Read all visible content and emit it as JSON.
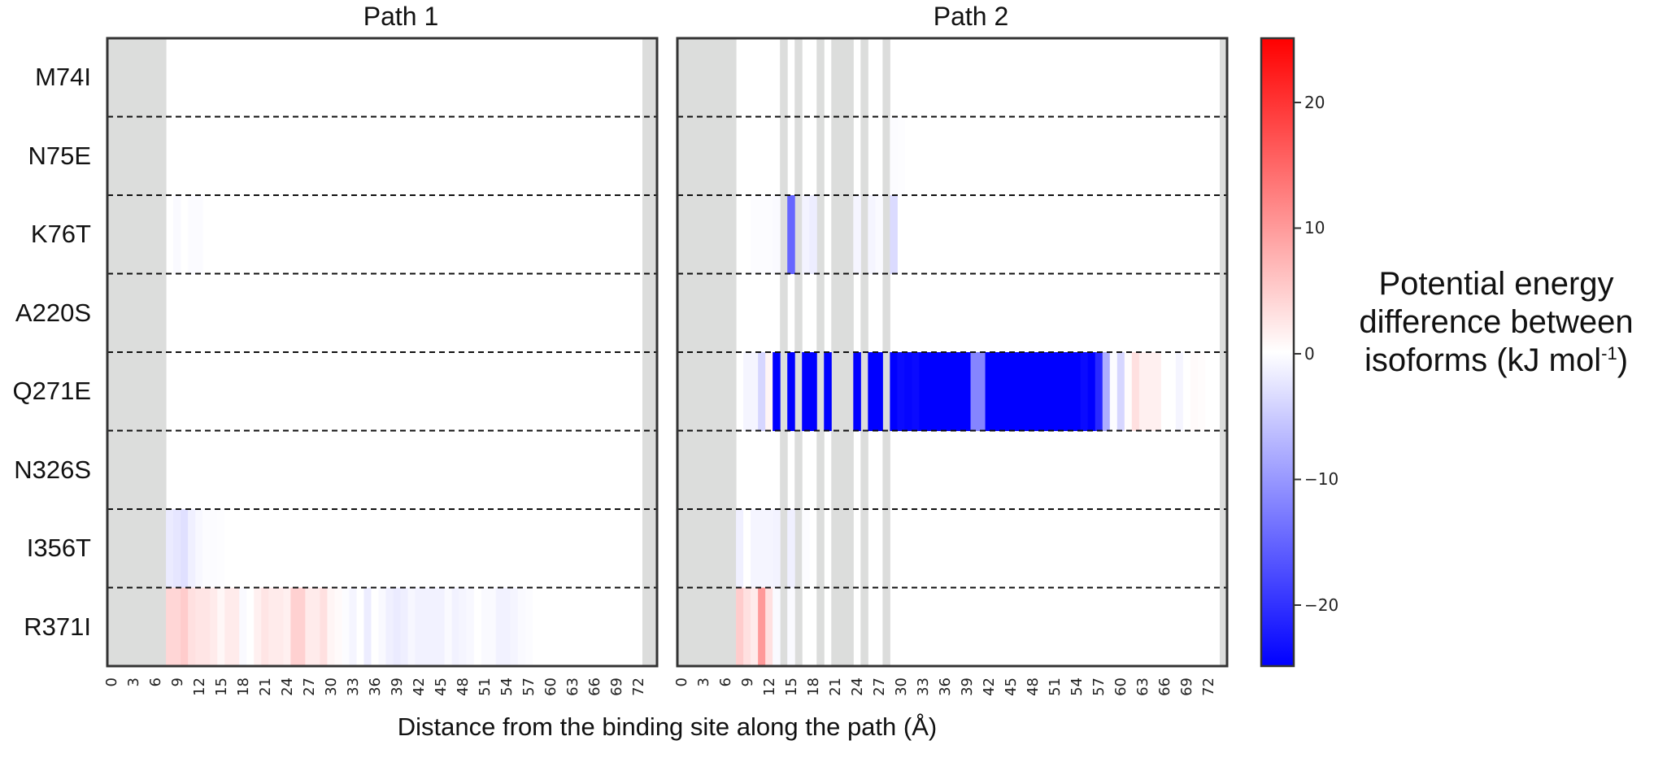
{
  "chart_data": {
    "type": "heatmap",
    "title": "",
    "panels": [
      {
        "title": "Path 1"
      },
      {
        "title": "Path 2"
      }
    ],
    "xlabel": "Distance from the binding site along the path (Å)",
    "xticks": [
      "0",
      "3",
      "6",
      "9",
      "12",
      "15",
      "18",
      "21",
      "24",
      "27",
      "30",
      "33",
      "36",
      "39",
      "42",
      "45",
      "48",
      "51",
      "54",
      "57",
      "60",
      "63",
      "66",
      "69",
      "72"
    ],
    "x_bins": 75,
    "rows": [
      "M74I",
      "N75E",
      "K76T",
      "A220S",
      "Q271E",
      "N326S",
      "I356T",
      "R371I"
    ],
    "colorbar": {
      "label_line1": "Potential energy",
      "label_line2": "difference between",
      "label_line3_main": "isoforms (kJ mol",
      "label_line3_sup": "-1",
      "label_line3_end": ")",
      "vmin": -25,
      "vmax": 25,
      "cmap": "bwr",
      "ticks": [
        "20",
        "10",
        "0",
        "−10",
        "−20"
      ],
      "tick_values": [
        20,
        10,
        0,
        -10,
        -20
      ]
    },
    "nan_color": "#dcdddc",
    "row_separator": "dashed",
    "sparse_values": {
      "Path 1": {
        "nan_columns": [
          0,
          1,
          2,
          3,
          4,
          5,
          6,
          7,
          73,
          74
        ],
        "K76T": {
          "9": -0.5,
          "11": -0.4,
          "12": -0.4
        },
        "I356T": {
          "8": -2,
          "9": -2.5,
          "10": -3,
          "11": -1.5,
          "12": -0.7,
          "13": -0.3,
          "14": -0.3,
          "15": -0.2
        },
        "R371I": {
          "8": 4,
          "9": 4,
          "10": 5,
          "11": 3,
          "12": 2.5,
          "13": 2.5,
          "14": 2,
          "15": 0.8,
          "16": 2,
          "17": 2,
          "18": -0.5,
          "19": 0,
          "20": 1.5,
          "21": 2.5,
          "22": 2,
          "23": 2,
          "24": 1.5,
          "25": 4.5,
          "26": 4.5,
          "27": 2,
          "28": 2,
          "29": 3,
          "30": 1,
          "31": 0.5,
          "32": -0.3,
          "33": -1,
          "34": 0,
          "35": -1.8,
          "36": 0,
          "37": -0.6,
          "38": -1.5,
          "39": -2,
          "40": -1.6,
          "41": -0.8,
          "42": -1.3,
          "43": -1.3,
          "44": -1.3,
          "45": -1.3,
          "46": -0.5,
          "47": -1.3,
          "48": -1.0,
          "49": -0.7,
          "50": 0,
          "51": -0.5,
          "52": -0.5,
          "53": -1.3,
          "54": -1.3,
          "55": -1.0,
          "56": -0.5,
          "57": -0.3
        }
      },
      "Path 2": {
        "nan_columns": [
          0,
          1,
          2,
          3,
          4,
          5,
          6,
          7,
          14,
          16,
          19,
          21,
          22,
          23,
          25,
          28,
          74
        ],
        "N75E": {
          "29": -0.3,
          "30": -0.2
        },
        "K76T": {
          "10": -0.3,
          "11": -0.3,
          "12": -0.3,
          "13": -0.5,
          "15": -15,
          "17": -1.2,
          "18": -1.8,
          "24": -1,
          "26": -1,
          "27": -0.5,
          "29": -3.5
        },
        "Q271E": {
          "9": -1,
          "10": -1,
          "11": -4,
          "12": 1,
          "13": -25,
          "15": -25,
          "17": -25,
          "18": -25,
          "20": -25,
          "24": -25,
          "26": -25,
          "27": -25,
          "29": -25,
          "30": -24,
          "31": -24.5,
          "32": -24,
          "33": -25,
          "34": -25,
          "35": -25,
          "36": -25,
          "37": -25,
          "38": -25,
          "39": -25,
          "40": -12,
          "41": -12,
          "42": -25,
          "43": -25,
          "44": -25,
          "45": -25,
          "46": -25,
          "47": -25,
          "48": -25,
          "49": -25,
          "50": -25,
          "51": -25,
          "52": -25,
          "53": -25,
          "54": -25,
          "55": -24,
          "56": -25,
          "57": -21,
          "58": -8,
          "59": -0.3,
          "60": -4,
          "61": 0.3,
          "62": 3,
          "63": 1.5,
          "64": 1.5,
          "65": 1.5,
          "66": 0,
          "67": 0,
          "68": -1,
          "69": 0,
          "70": 0.5,
          "71": 0.3
        },
        "I356T": {
          "8": -1.5,
          "9": 0,
          "10": -1,
          "11": -1,
          "12": -1,
          "13": -1.2,
          "15": -1.5,
          "17": -0.3
        },
        "R371I": {
          "8": 5,
          "9": 3,
          "10": 2,
          "11": 10,
          "12": 3,
          "13": -0.5,
          "15": -0.5
        }
      }
    }
  }
}
